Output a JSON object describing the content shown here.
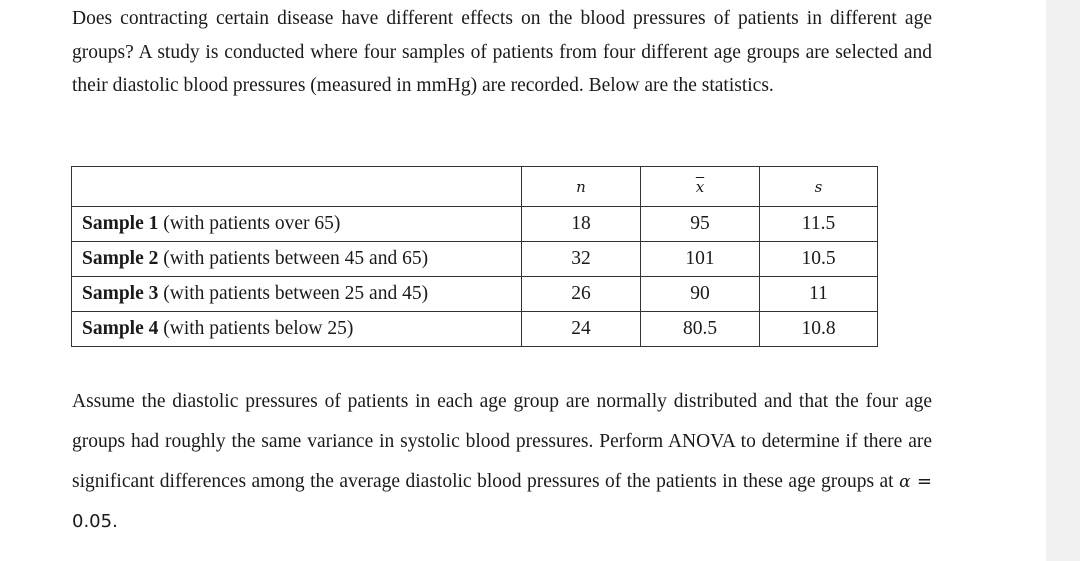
{
  "intro": {
    "text": "Does contracting certain disease have different effects on the blood pressures of patients in different age groups? A study is conducted where four samples of patients from four different age groups are selected and their diastolic blood pressures (measured in mmHg) are recorded. Below are the statistics."
  },
  "table": {
    "headers": {
      "n": "n",
      "mean": "x",
      "sd": "s"
    },
    "rows": [
      {
        "sample": "Sample 1",
        "desc": " (with patients over 65)",
        "n": "18",
        "mean": "95",
        "sd": "11.5"
      },
      {
        "sample": "Sample 2",
        "desc": " (with patients between 45 and 65)",
        "n": "32",
        "mean": "101",
        "sd": "10.5"
      },
      {
        "sample": "Sample 3",
        "desc": " (with patients between 25 and 45)",
        "n": "26",
        "mean": "90",
        "sd": "11"
      },
      {
        "sample": "Sample 4",
        "desc": " (with patients below 25)",
        "n": "24",
        "mean": "80.5",
        "sd": "10.8"
      }
    ]
  },
  "question": {
    "text": "Assume the diastolic pressures of patients in each age group are normally distributed and that the four age groups had roughly the same variance in systolic blood pressures. Perform ANOVA to determine if there are significant differences among the average diastolic blood pressures of the patients in these age groups at",
    "alpha_symbol": "α",
    "alpha_eq": " = 0.05."
  }
}
